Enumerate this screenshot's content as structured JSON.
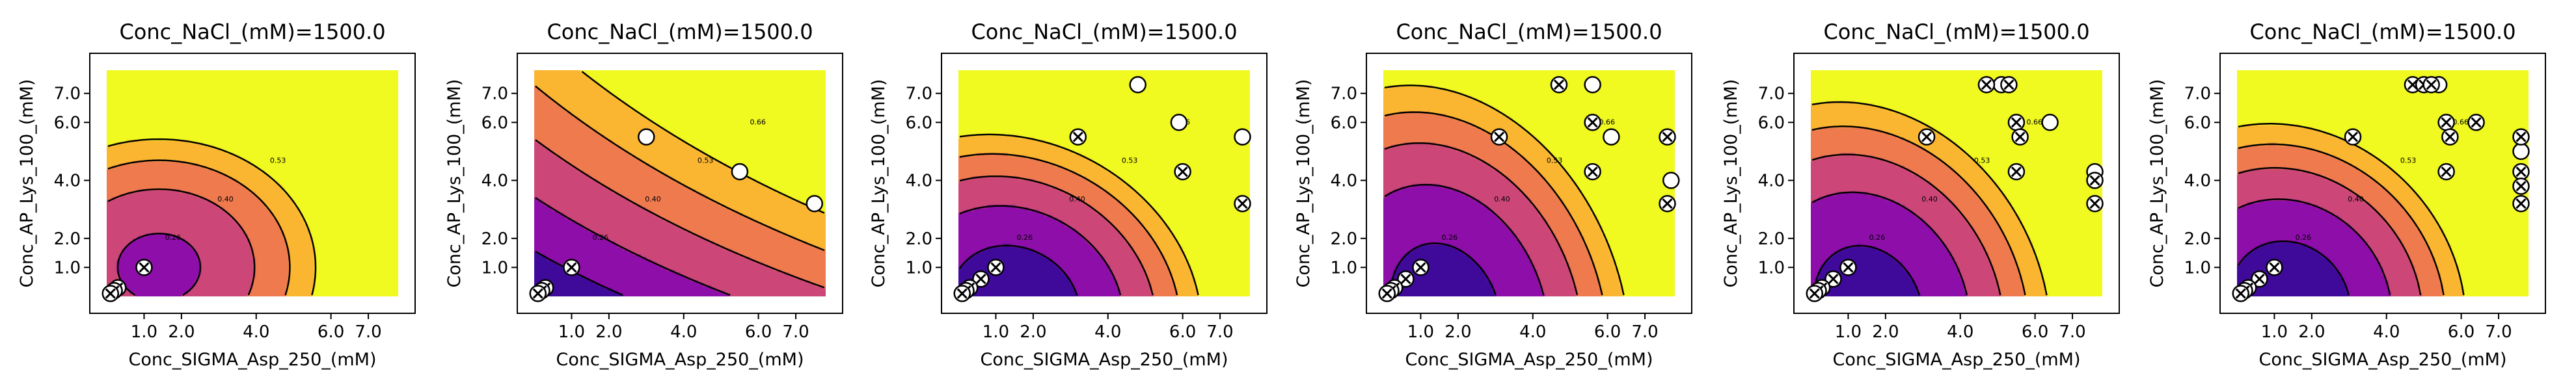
{
  "figure": {
    "panel_count": 6
  },
  "chart_data": [
    {
      "type": "contour",
      "title": "Conc_NaCl_(mM)=1500.0",
      "xlabel": "Conc_SIGMA_Asp_250_(mM)",
      "ylabel": "Conc_AP_Lys_100_(mM)",
      "xticks": [
        "1.0",
        "2.0",
        "4.0",
        "6.0",
        "7.0"
      ],
      "yticks": [
        "1.0",
        "2.0",
        "4.0",
        "6.0",
        "7.0"
      ],
      "contour_labels": [
        "0.26",
        "0.40",
        "0.53"
      ],
      "levels": [
        0.13,
        0.26,
        0.4,
        0.53
      ],
      "colors": [
        "#3f0a9a",
        "#8d0ea8",
        "#cc4778",
        "#ee7a4e",
        "#fbb631",
        "#f0f920"
      ],
      "points": [
        {
          "x": 1.0,
          "y": 1.0,
          "m": "x"
        },
        {
          "x": 0.3,
          "y": 0.3,
          "m": "x"
        },
        {
          "x": 0.2,
          "y": 0.2,
          "m": "x"
        },
        {
          "x": 0.1,
          "y": 0.1,
          "m": "x"
        }
      ]
    },
    {
      "type": "contour",
      "title": "Conc_NaCl_(mM)=1500.0",
      "xlabel": "Conc_SIGMA_Asp_250_(mM)",
      "ylabel": "Conc_AP_Lys_100_(mM)",
      "xticks": [
        "1.0",
        "2.0",
        "4.0",
        "6.0",
        "7.0"
      ],
      "yticks": [
        "1.0",
        "2.0",
        "4.0",
        "6.0",
        "7.0"
      ],
      "contour_labels": [
        "0.26",
        "0.40",
        "0.53",
        "0.66"
      ],
      "levels": [
        0.13,
        0.26,
        0.4,
        0.53,
        0.66
      ],
      "colors": [
        "#3f0a9a",
        "#8d0ea8",
        "#cc4778",
        "#ee7a4e",
        "#fbb631",
        "#f0f920"
      ],
      "points": [
        {
          "x": 3.0,
          "y": 5.5,
          "m": "o"
        },
        {
          "x": 5.5,
          "y": 4.3,
          "m": "o"
        },
        {
          "x": 7.5,
          "y": 3.2,
          "m": "o"
        },
        {
          "x": 1.0,
          "y": 1.0,
          "m": "x"
        },
        {
          "x": 0.3,
          "y": 0.3,
          "m": "x"
        },
        {
          "x": 0.2,
          "y": 0.2,
          "m": "x"
        },
        {
          "x": 0.1,
          "y": 0.1,
          "m": "x"
        }
      ]
    },
    {
      "type": "contour",
      "title": "Conc_NaCl_(mM)=1500.0",
      "xlabel": "Conc_SIGMA_Asp_250_(mM)",
      "ylabel": "Conc_AP_Lys_100_(mM)",
      "xticks": [
        "1.0",
        "2.0",
        "4.0",
        "6.0",
        "7.0"
      ],
      "yticks": [
        "1.0",
        "2.0",
        "4.0",
        "6.0",
        "7.0"
      ],
      "contour_labels": [
        "0.26",
        "0.40",
        "0.53",
        "0.66"
      ],
      "levels": [
        0.13,
        0.26,
        0.4,
        0.53,
        0.66
      ],
      "colors": [
        "#3f0a9a",
        "#8d0ea8",
        "#cc4778",
        "#ee7a4e",
        "#fbb631",
        "#f0f920"
      ],
      "points": [
        {
          "x": 4.8,
          "y": 7.3,
          "m": "o"
        },
        {
          "x": 5.9,
          "y": 6.0,
          "m": "o"
        },
        {
          "x": 7.6,
          "y": 5.5,
          "m": "o"
        },
        {
          "x": 3.2,
          "y": 5.5,
          "m": "x"
        },
        {
          "x": 6.0,
          "y": 4.3,
          "m": "x"
        },
        {
          "x": 7.6,
          "y": 3.2,
          "m": "x"
        },
        {
          "x": 1.0,
          "y": 1.0,
          "m": "x"
        },
        {
          "x": 0.6,
          "y": 0.6,
          "m": "x"
        },
        {
          "x": 0.3,
          "y": 0.3,
          "m": "x"
        },
        {
          "x": 0.2,
          "y": 0.2,
          "m": "x"
        },
        {
          "x": 0.1,
          "y": 0.1,
          "m": "x"
        }
      ]
    },
    {
      "type": "contour",
      "title": "Conc_NaCl_(mM)=1500.0",
      "xlabel": "Conc_SIGMA_Asp_250_(mM)",
      "ylabel": "Conc_AP_Lys_100_(mM)",
      "xticks": [
        "1.0",
        "2.0",
        "4.0",
        "6.0",
        "7.0"
      ],
      "yticks": [
        "1.0",
        "2.0",
        "4.0",
        "6.0",
        "7.0"
      ],
      "contour_labels": [
        "0.26",
        "0.40",
        "0.53",
        "0.66"
      ],
      "levels": [
        0.13,
        0.26,
        0.4,
        0.53,
        0.66
      ],
      "colors": [
        "#3f0a9a",
        "#8d0ea8",
        "#cc4778",
        "#ee7a4e",
        "#fbb631",
        "#f0f920"
      ],
      "points": [
        {
          "x": 5.6,
          "y": 7.3,
          "m": "o"
        },
        {
          "x": 6.1,
          "y": 5.5,
          "m": "o"
        },
        {
          "x": 7.7,
          "y": 4.0,
          "m": "o"
        },
        {
          "x": 4.7,
          "y": 7.3,
          "m": "x"
        },
        {
          "x": 3.1,
          "y": 5.5,
          "m": "x"
        },
        {
          "x": 5.6,
          "y": 6.0,
          "m": "x"
        },
        {
          "x": 7.6,
          "y": 5.5,
          "m": "x"
        },
        {
          "x": 5.6,
          "y": 4.3,
          "m": "x"
        },
        {
          "x": 7.6,
          "y": 3.2,
          "m": "x"
        },
        {
          "x": 1.0,
          "y": 1.0,
          "m": "x"
        },
        {
          "x": 0.6,
          "y": 0.6,
          "m": "x"
        },
        {
          "x": 0.3,
          "y": 0.3,
          "m": "x"
        },
        {
          "x": 0.2,
          "y": 0.2,
          "m": "x"
        },
        {
          "x": 0.1,
          "y": 0.1,
          "m": "x"
        }
      ]
    },
    {
      "type": "contour",
      "title": "Conc_NaCl_(mM)=1500.0",
      "xlabel": "Conc_SIGMA_Asp_250_(mM)",
      "ylabel": "Conc_AP_Lys_100_(mM)",
      "xticks": [
        "1.0",
        "2.0",
        "4.0",
        "6.0",
        "7.0"
      ],
      "yticks": [
        "1.0",
        "2.0",
        "4.0",
        "6.0",
        "7.0"
      ],
      "contour_labels": [
        "0.26",
        "0.40",
        "0.53",
        "0.66"
      ],
      "levels": [
        0.13,
        0.26,
        0.4,
        0.53,
        0.66
      ],
      "colors": [
        "#3f0a9a",
        "#8d0ea8",
        "#cc4778",
        "#ee7a4e",
        "#fbb631",
        "#f0f920"
      ],
      "points": [
        {
          "x": 5.1,
          "y": 7.3,
          "m": "o"
        },
        {
          "x": 6.4,
          "y": 6.0,
          "m": "o"
        },
        {
          "x": 7.6,
          "y": 4.3,
          "m": "o"
        },
        {
          "x": 4.7,
          "y": 7.3,
          "m": "x"
        },
        {
          "x": 5.3,
          "y": 7.3,
          "m": "x"
        },
        {
          "x": 5.5,
          "y": 6.0,
          "m": "x"
        },
        {
          "x": 3.1,
          "y": 5.5,
          "m": "x"
        },
        {
          "x": 5.6,
          "y": 5.5,
          "m": "x"
        },
        {
          "x": 5.5,
          "y": 4.3,
          "m": "x"
        },
        {
          "x": 7.6,
          "y": 3.2,
          "m": "x"
        },
        {
          "x": 7.6,
          "y": 4.0,
          "m": "x"
        },
        {
          "x": 1.0,
          "y": 1.0,
          "m": "x"
        },
        {
          "x": 0.6,
          "y": 0.6,
          "m": "x"
        },
        {
          "x": 0.3,
          "y": 0.3,
          "m": "x"
        },
        {
          "x": 0.2,
          "y": 0.2,
          "m": "x"
        },
        {
          "x": 0.1,
          "y": 0.1,
          "m": "x"
        }
      ]
    },
    {
      "type": "contour",
      "title": "Conc_NaCl_(mM)=1500.0",
      "xlabel": "Conc_SIGMA_Asp_250_(mM)",
      "ylabel": "Conc_AP_Lys_100_(mM)",
      "xticks": [
        "1.0",
        "2.0",
        "4.0",
        "6.0",
        "7.0"
      ],
      "yticks": [
        "1.0",
        "2.0",
        "4.0",
        "6.0",
        "7.0"
      ],
      "contour_labels": [
        "0.26",
        "0.40",
        "0.53",
        "0.66"
      ],
      "levels": [
        0.13,
        0.26,
        0.4,
        0.53,
        0.66
      ],
      "colors": [
        "#3f0a9a",
        "#8d0ea8",
        "#cc4778",
        "#ee7a4e",
        "#fbb631",
        "#f0f920"
      ],
      "points": [
        {
          "x": 5.4,
          "y": 7.3,
          "m": "o"
        },
        {
          "x": 7.6,
          "y": 5.0,
          "m": "o"
        },
        {
          "x": 4.7,
          "y": 7.3,
          "m": "x"
        },
        {
          "x": 5.0,
          "y": 7.3,
          "m": "x"
        },
        {
          "x": 5.2,
          "y": 7.3,
          "m": "x"
        },
        {
          "x": 3.1,
          "y": 5.5,
          "m": "x"
        },
        {
          "x": 5.6,
          "y": 6.0,
          "m": "x"
        },
        {
          "x": 5.7,
          "y": 5.5,
          "m": "x"
        },
        {
          "x": 6.4,
          "y": 6.0,
          "m": "x"
        },
        {
          "x": 7.6,
          "y": 5.5,
          "m": "x"
        },
        {
          "x": 5.6,
          "y": 4.3,
          "m": "x"
        },
        {
          "x": 7.6,
          "y": 4.3,
          "m": "x"
        },
        {
          "x": 7.6,
          "y": 3.8,
          "m": "x"
        },
        {
          "x": 7.6,
          "y": 3.2,
          "m": "x"
        },
        {
          "x": 1.0,
          "y": 1.0,
          "m": "x"
        },
        {
          "x": 0.6,
          "y": 0.6,
          "m": "x"
        },
        {
          "x": 0.3,
          "y": 0.3,
          "m": "x"
        },
        {
          "x": 0.2,
          "y": 0.2,
          "m": "x"
        },
        {
          "x": 0.1,
          "y": 0.1,
          "m": "x"
        }
      ]
    }
  ]
}
